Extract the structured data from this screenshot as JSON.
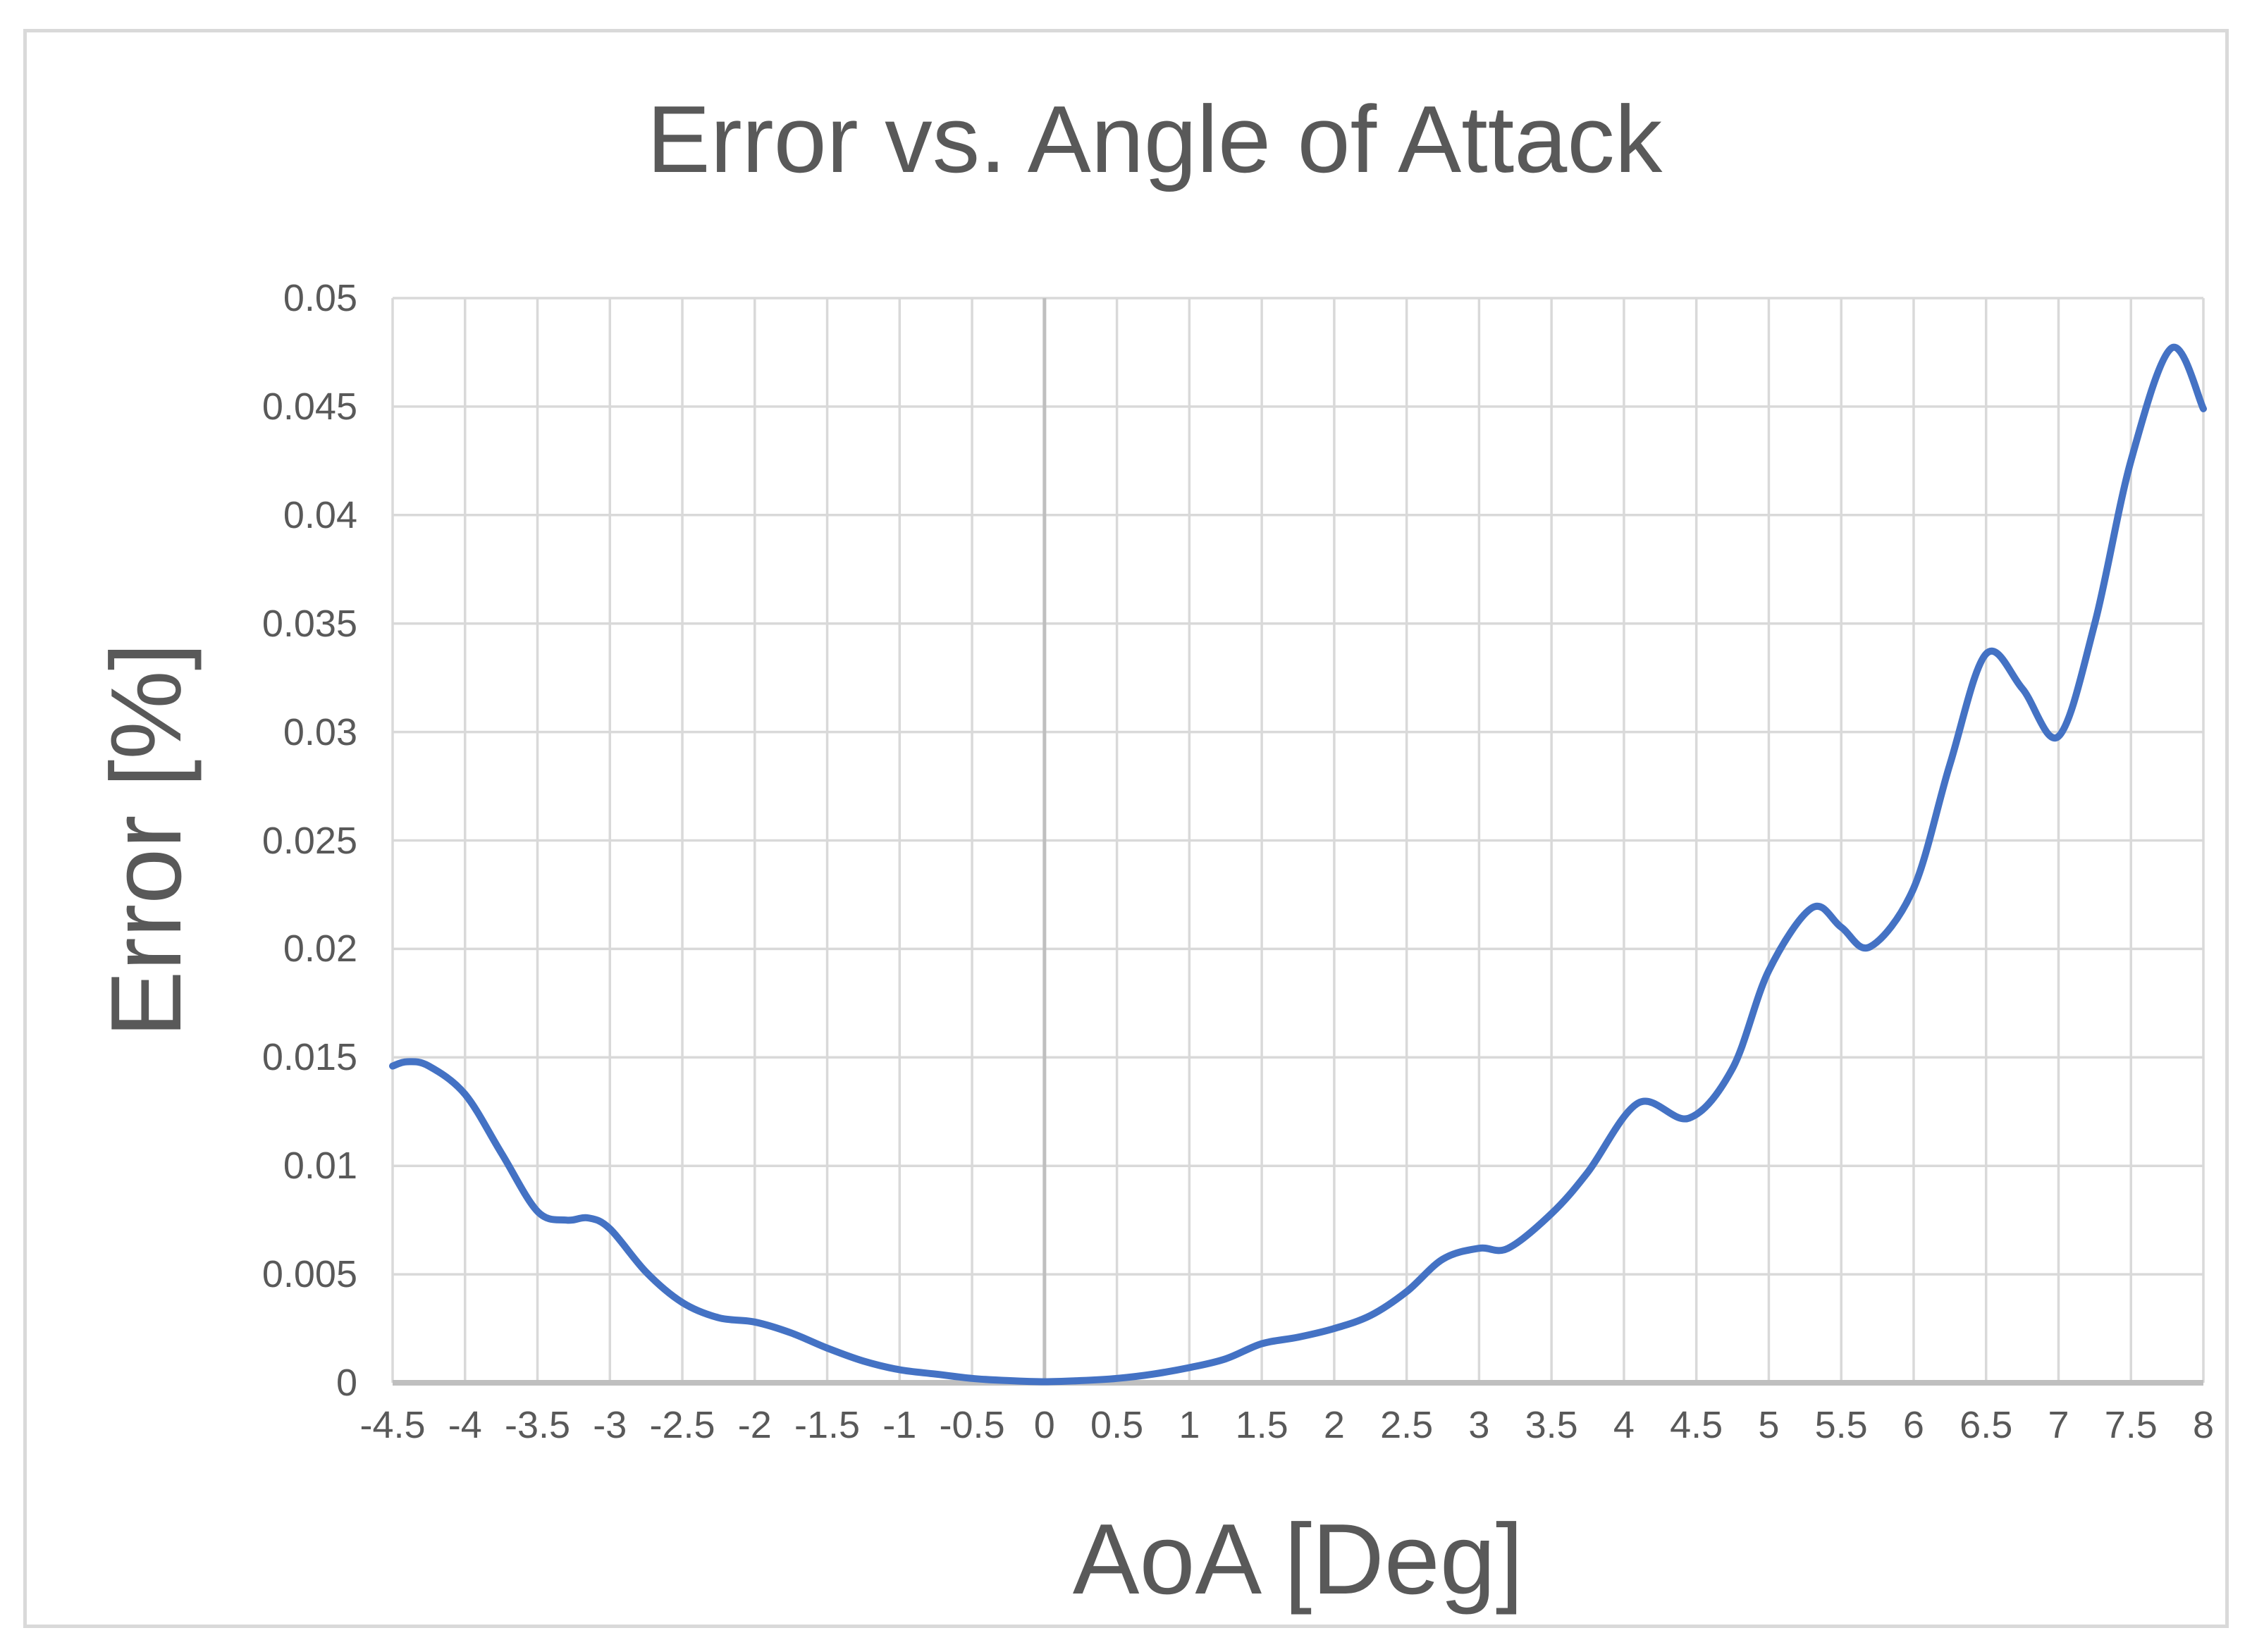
{
  "chart_data": {
    "type": "line",
    "title": "Error vs. Angle of Attack",
    "xlabel": "AoA [Deg]",
    "ylabel": "Error [%]",
    "xlim": [
      -4.5,
      8
    ],
    "ylim": [
      0,
      0.05
    ],
    "grid": true,
    "legend_position": "none",
    "x_ticks": [
      "-4.5",
      "-4",
      "-3.5",
      "-3",
      "-2.5",
      "-2",
      "-1.5",
      "-1",
      "-0.5",
      "0",
      "0.5",
      "1",
      "1.5",
      "2",
      "2.5",
      "3",
      "3.5",
      "4",
      "4.5",
      "5",
      "5.5",
      "6",
      "6.5",
      "7",
      "7.5",
      "8"
    ],
    "y_ticks": [
      "0",
      "0.005",
      "0.01",
      "0.015",
      "0.02",
      "0.025",
      "0.03",
      "0.035",
      "0.04",
      "0.045",
      "0.05"
    ],
    "series": [
      {
        "name": "Error",
        "points": [
          [
            -4.5,
            0.0146
          ],
          [
            -4.4,
            0.0148
          ],
          [
            -4.25,
            0.0146
          ],
          [
            -4.0,
            0.0133
          ],
          [
            -3.75,
            0.0106
          ],
          [
            -3.5,
            0.0079
          ],
          [
            -3.3,
            0.0075
          ],
          [
            -3.15,
            0.0076
          ],
          [
            -3.0,
            0.0071
          ],
          [
            -2.75,
            0.0051
          ],
          [
            -2.5,
            0.0037
          ],
          [
            -2.25,
            0.003
          ],
          [
            -2.0,
            0.0028
          ],
          [
            -1.75,
            0.0023
          ],
          [
            -1.5,
            0.0016
          ],
          [
            -1.25,
            0.001
          ],
          [
            -1.0,
            0.0006
          ],
          [
            -0.75,
            0.0004
          ],
          [
            -0.5,
            0.0002
          ],
          [
            -0.25,
            0.0001
          ],
          [
            0.0,
            5e-05
          ],
          [
            0.25,
            0.0001
          ],
          [
            0.5,
            0.0002
          ],
          [
            0.75,
            0.0004
          ],
          [
            1.0,
            0.0007
          ],
          [
            1.25,
            0.0011
          ],
          [
            1.5,
            0.0018
          ],
          [
            1.75,
            0.0021
          ],
          [
            2.0,
            0.0025
          ],
          [
            2.25,
            0.0031
          ],
          [
            2.5,
            0.0042
          ],
          [
            2.75,
            0.0057
          ],
          [
            3.0,
            0.0062
          ],
          [
            3.2,
            0.0062
          ],
          [
            3.5,
            0.0078
          ],
          [
            3.75,
            0.0097
          ],
          [
            4.1,
            0.0129
          ],
          [
            4.45,
            0.0122
          ],
          [
            4.75,
            0.0145
          ],
          [
            5.0,
            0.019
          ],
          [
            5.3,
            0.0219
          ],
          [
            5.5,
            0.021
          ],
          [
            5.7,
            0.0201
          ],
          [
            6.0,
            0.0228
          ],
          [
            6.25,
            0.0285
          ],
          [
            6.5,
            0.0336
          ],
          [
            6.75,
            0.032
          ],
          [
            7.0,
            0.0298
          ],
          [
            7.25,
            0.035
          ],
          [
            7.5,
            0.0425
          ],
          [
            7.78,
            0.0477
          ],
          [
            8.0,
            0.0449
          ]
        ]
      }
    ]
  },
  "colors": {
    "line": "#4472C4",
    "gridline": "#D9D9D9",
    "axis_line": "#BFBFBF",
    "text": "#595959",
    "frame_border": "#D9D9D9",
    "background": "#FFFFFF"
  }
}
